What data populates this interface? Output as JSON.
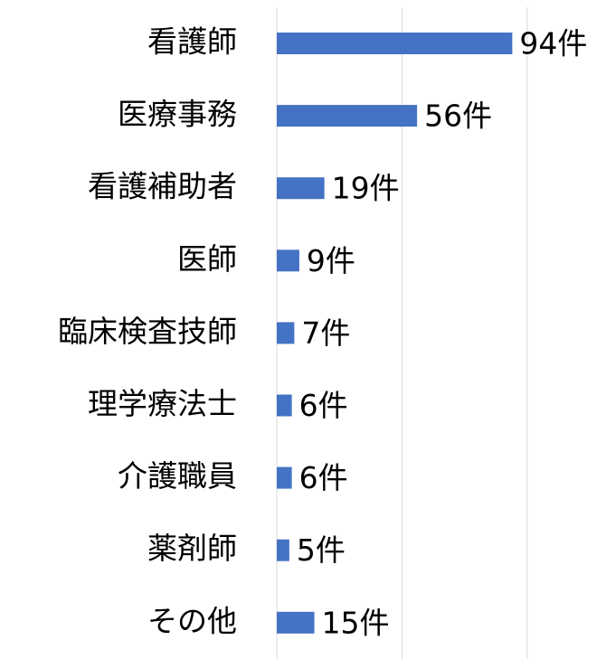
{
  "chart_data": {
    "type": "bar",
    "orientation": "horizontal",
    "categories": [
      "看護師",
      "医療事務",
      "看護補助者",
      "医師",
      "臨床検査技師",
      "理学療法士",
      "介護職員",
      "薬剤師",
      "その他"
    ],
    "values": [
      94,
      56,
      19,
      9,
      7,
      6,
      6,
      5,
      15
    ],
    "value_labels": [
      "94件",
      "56件",
      "19件",
      "9件",
      "7件",
      "6件",
      "6件",
      "5件",
      "15件"
    ],
    "color": "#4472c4",
    "xlim": [
      0,
      100
    ],
    "xticks": [
      0,
      50,
      100
    ],
    "grid": true
  }
}
